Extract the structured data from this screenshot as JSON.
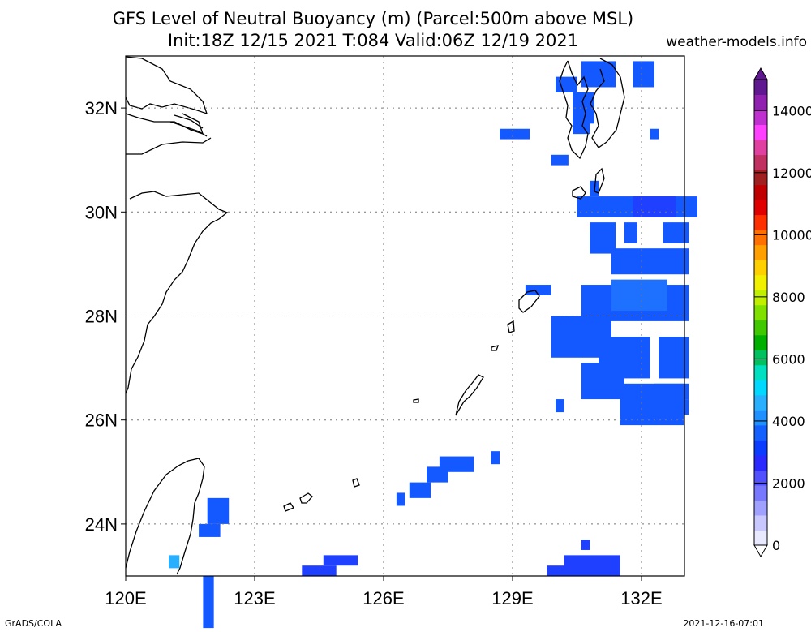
{
  "title_line1": "GFS Level of Neutral Buoyancy (m) (Parcel:500m above MSL)",
  "title_line2": "Init:18Z 12/15 2021 T:084 Valid:06Z 12/19 2021",
  "site": "weather-models.info",
  "footer_left": "GrADS/COLA",
  "footer_right": "2021-12-16-07:01",
  "map": {
    "lon_range": [
      120,
      133
    ],
    "lat_range": [
      23,
      33
    ],
    "x_ticks": [
      {
        "value": 120,
        "label": "120E"
      },
      {
        "value": 123,
        "label": "123E"
      },
      {
        "value": 126,
        "label": "126E"
      },
      {
        "value": 129,
        "label": "129E"
      },
      {
        "value": 132,
        "label": "132E"
      }
    ],
    "y_ticks": [
      {
        "value": 32,
        "label": "32N"
      },
      {
        "value": 30,
        "label": "30N"
      },
      {
        "value": 28,
        "label": "28N"
      },
      {
        "value": 26,
        "label": "26N"
      },
      {
        "value": 24,
        "label": "24N"
      }
    ],
    "colorbar": {
      "min": 0,
      "max": 15000,
      "labels": [
        {
          "value": 0,
          "label": "0"
        },
        {
          "value": 2000,
          "label": "2000"
        },
        {
          "value": 4000,
          "label": "4000"
        },
        {
          "value": 6000,
          "label": "6000"
        },
        {
          "value": 8000,
          "label": "8000"
        },
        {
          "value": 10000,
          "label": "10000"
        },
        {
          "value": 12000,
          "label": "12000"
        },
        {
          "value": 14000,
          "label": "14000"
        }
      ],
      "colors": [
        "#e8e8ff",
        "#c8c8ff",
        "#a0a0ff",
        "#7878ff",
        "#5050ff",
        "#2828ff",
        "#0a3cff",
        "#1460ff",
        "#1e90ff",
        "#28b0ff",
        "#00d8ff",
        "#00e0c0",
        "#00c060",
        "#00b000",
        "#40c800",
        "#80e000",
        "#c0f000",
        "#f0f000",
        "#ffd000",
        "#ffa000",
        "#ff7000",
        "#ff3000",
        "#e00000",
        "#c00000",
        "#a02020",
        "#c03060",
        "#e040a0",
        "#ff40ff",
        "#c030d0",
        "#9020b0",
        "#601890"
      ]
    },
    "cells": [
      [
        130.6,
        32.9,
        0.8,
        0.5,
        "#1458ff"
      ],
      [
        131.8,
        32.9,
        0.5,
        0.5,
        "#1458ff"
      ],
      [
        130.0,
        32.6,
        0.5,
        0.3,
        "#1458ff"
      ],
      [
        130.4,
        32.3,
        0.5,
        0.6,
        "#1458ff"
      ],
      [
        128.7,
        31.6,
        0.7,
        0.2,
        "#1458ff"
      ],
      [
        130.4,
        31.8,
        0.4,
        0.3,
        "#1458ff"
      ],
      [
        132.2,
        31.6,
        0.2,
        0.2,
        "#1458ff"
      ],
      [
        129.9,
        31.1,
        0.4,
        0.2,
        "#1458ff"
      ],
      [
        130.8,
        30.6,
        0.2,
        0.3,
        "#1458ff"
      ],
      [
        130.5,
        30.3,
        2.8,
        0.4,
        "#1458ff"
      ],
      [
        131.8,
        30.3,
        1.0,
        0.4,
        "#2040ff"
      ],
      [
        130.8,
        29.8,
        0.6,
        0.6,
        "#1458ff"
      ],
      [
        131.6,
        29.8,
        0.3,
        0.4,
        "#1458ff"
      ],
      [
        132.5,
        29.8,
        0.6,
        0.4,
        "#1458ff"
      ],
      [
        131.3,
        29.3,
        1.8,
        0.5,
        "#1458ff"
      ],
      [
        130.6,
        28.6,
        2.5,
        0.7,
        "#1458ff"
      ],
      [
        131.3,
        28.7,
        1.3,
        0.6,
        "#1e70ff"
      ],
      [
        129.9,
        28.0,
        1.4,
        0.8,
        "#1458ff"
      ],
      [
        129.3,
        28.6,
        0.6,
        0.2,
        "#1458ff"
      ],
      [
        131.0,
        27.6,
        1.2,
        0.8,
        "#1458ff"
      ],
      [
        132.4,
        27.6,
        0.7,
        0.8,
        "#1458ff"
      ],
      [
        130.2,
        27.7,
        0.2,
        0.3,
        "#1458ff"
      ],
      [
        130.6,
        27.1,
        1.0,
        0.7,
        "#1458ff"
      ],
      [
        131.5,
        26.7,
        1.5,
        0.8,
        "#1458ff"
      ],
      [
        132.3,
        26.7,
        0.8,
        0.3,
        "#1458ff"
      ],
      [
        132.4,
        26.4,
        0.7,
        0.3,
        "#1458ff"
      ],
      [
        130.0,
        26.4,
        0.2,
        0.25,
        "#1458ff"
      ],
      [
        127.3,
        25.3,
        0.8,
        0.3,
        "#1458ff"
      ],
      [
        127.0,
        25.1,
        0.5,
        0.3,
        "#1458ff"
      ],
      [
        126.6,
        24.8,
        0.5,
        0.3,
        "#1458ff"
      ],
      [
        128.5,
        25.4,
        0.2,
        0.25,
        "#1458ff"
      ],
      [
        126.3,
        24.6,
        0.2,
        0.25,
        "#1458ff"
      ],
      [
        121.9,
        24.5,
        0.5,
        0.5,
        "#1458ff"
      ],
      [
        121.7,
        24.0,
        0.5,
        0.25,
        "#1458ff"
      ],
      [
        121.8,
        23.0,
        0.25,
        1.0,
        "#1458ff"
      ],
      [
        121.0,
        23.4,
        0.25,
        0.25,
        "#28b0ff"
      ],
      [
        124.1,
        23.2,
        0.8,
        0.2,
        "#2040ff"
      ],
      [
        124.6,
        23.4,
        0.8,
        0.2,
        "#2040ff"
      ],
      [
        129.8,
        23.2,
        0.5,
        0.2,
        "#2040ff"
      ],
      [
        130.2,
        23.4,
        1.3,
        0.4,
        "#2040ff"
      ],
      [
        130.6,
        23.7,
        0.2,
        0.2,
        "#2040ff"
      ]
    ]
  }
}
